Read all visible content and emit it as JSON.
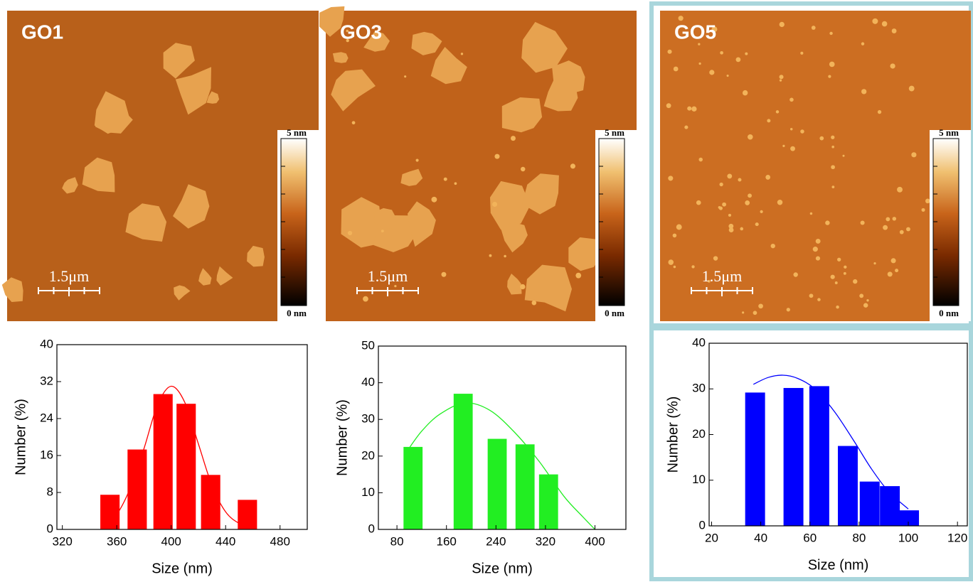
{
  "images": [
    {
      "label": "GO1",
      "scale_bar": "1.5μm",
      "colorbar_max": "5 nm",
      "colorbar_min": "0 nm"
    },
    {
      "label": "GO3",
      "scale_bar": "1.5μm",
      "colorbar_max": "5 nm",
      "colorbar_min": "0 nm"
    },
    {
      "label": "GO5",
      "scale_bar": "1.5μm",
      "colorbar_max": "5 nm",
      "colorbar_min": "0 nm"
    }
  ],
  "chart_data": [
    {
      "type": "bar",
      "x_label": "Size (nm)",
      "y_label": "Number (%)",
      "color": "#ff0000",
      "x": [
        355,
        375,
        394,
        411,
        429,
        456
      ],
      "values": [
        7.5,
        17.3,
        29.3,
        27.2,
        11.8,
        6.4
      ],
      "fit": {
        "x": [
          350,
          360,
          370,
          380,
          390,
          400,
          410,
          420,
          430,
          440,
          450,
          460
        ],
        "values": [
          1.3,
          3.3,
          9,
          17.5,
          27,
          31,
          27.5,
          18.5,
          9.5,
          3.8,
          1.3,
          0.4
        ]
      },
      "xlim": [
        316,
        500
      ],
      "xticks": [
        320,
        360,
        400,
        440,
        480
      ],
      "ylim": [
        0,
        40
      ],
      "yticks": [
        0,
        8,
        16,
        24,
        32,
        40
      ]
    },
    {
      "type": "bar",
      "x_label": "Size (nm)",
      "y_label": "Number (%)",
      "color": "#22ee22",
      "x": [
        106,
        187,
        242,
        287,
        325
      ],
      "values": [
        22.5,
        37,
        24.7,
        23.2,
        15
      ],
      "fit": {
        "x": [
          95,
          120,
          150,
          190,
          230,
          270,
          310,
          350,
          380,
          400
        ],
        "values": [
          21,
          26.8,
          31.5,
          34.5,
          32.5,
          26.5,
          18.5,
          9,
          3.5,
          0
        ]
      },
      "xlim": [
        50,
        450
      ],
      "xticks": [
        80,
        160,
        240,
        320,
        400
      ],
      "ylim": [
        0,
        50
      ],
      "yticks": [
        0,
        10,
        20,
        30,
        40,
        50
      ]
    },
    {
      "type": "bar",
      "x_label": "Size (nm)",
      "y_label": "Number (%)",
      "color": "#0000ff",
      "x": [
        37.7,
        53.3,
        63.8,
        75.4,
        84.3,
        92.5,
        100.3
      ],
      "values": [
        29.2,
        30.2,
        30.6,
        17.5,
        9.7,
        8.7,
        3.4
      ],
      "fit": {
        "x": [
          37,
          43,
          49,
          55,
          62,
          70,
          78,
          85,
          92,
          100
        ],
        "values": [
          31,
          32.5,
          33,
          32.3,
          30,
          25,
          18.5,
          12.5,
          7.5,
          3.7
        ]
      },
      "xlim": [
        19,
        124
      ],
      "xticks": [
        20,
        40,
        60,
        80,
        100,
        120
      ],
      "ylim": [
        0,
        40
      ],
      "yticks": [
        0,
        10,
        20,
        30,
        40
      ]
    }
  ]
}
